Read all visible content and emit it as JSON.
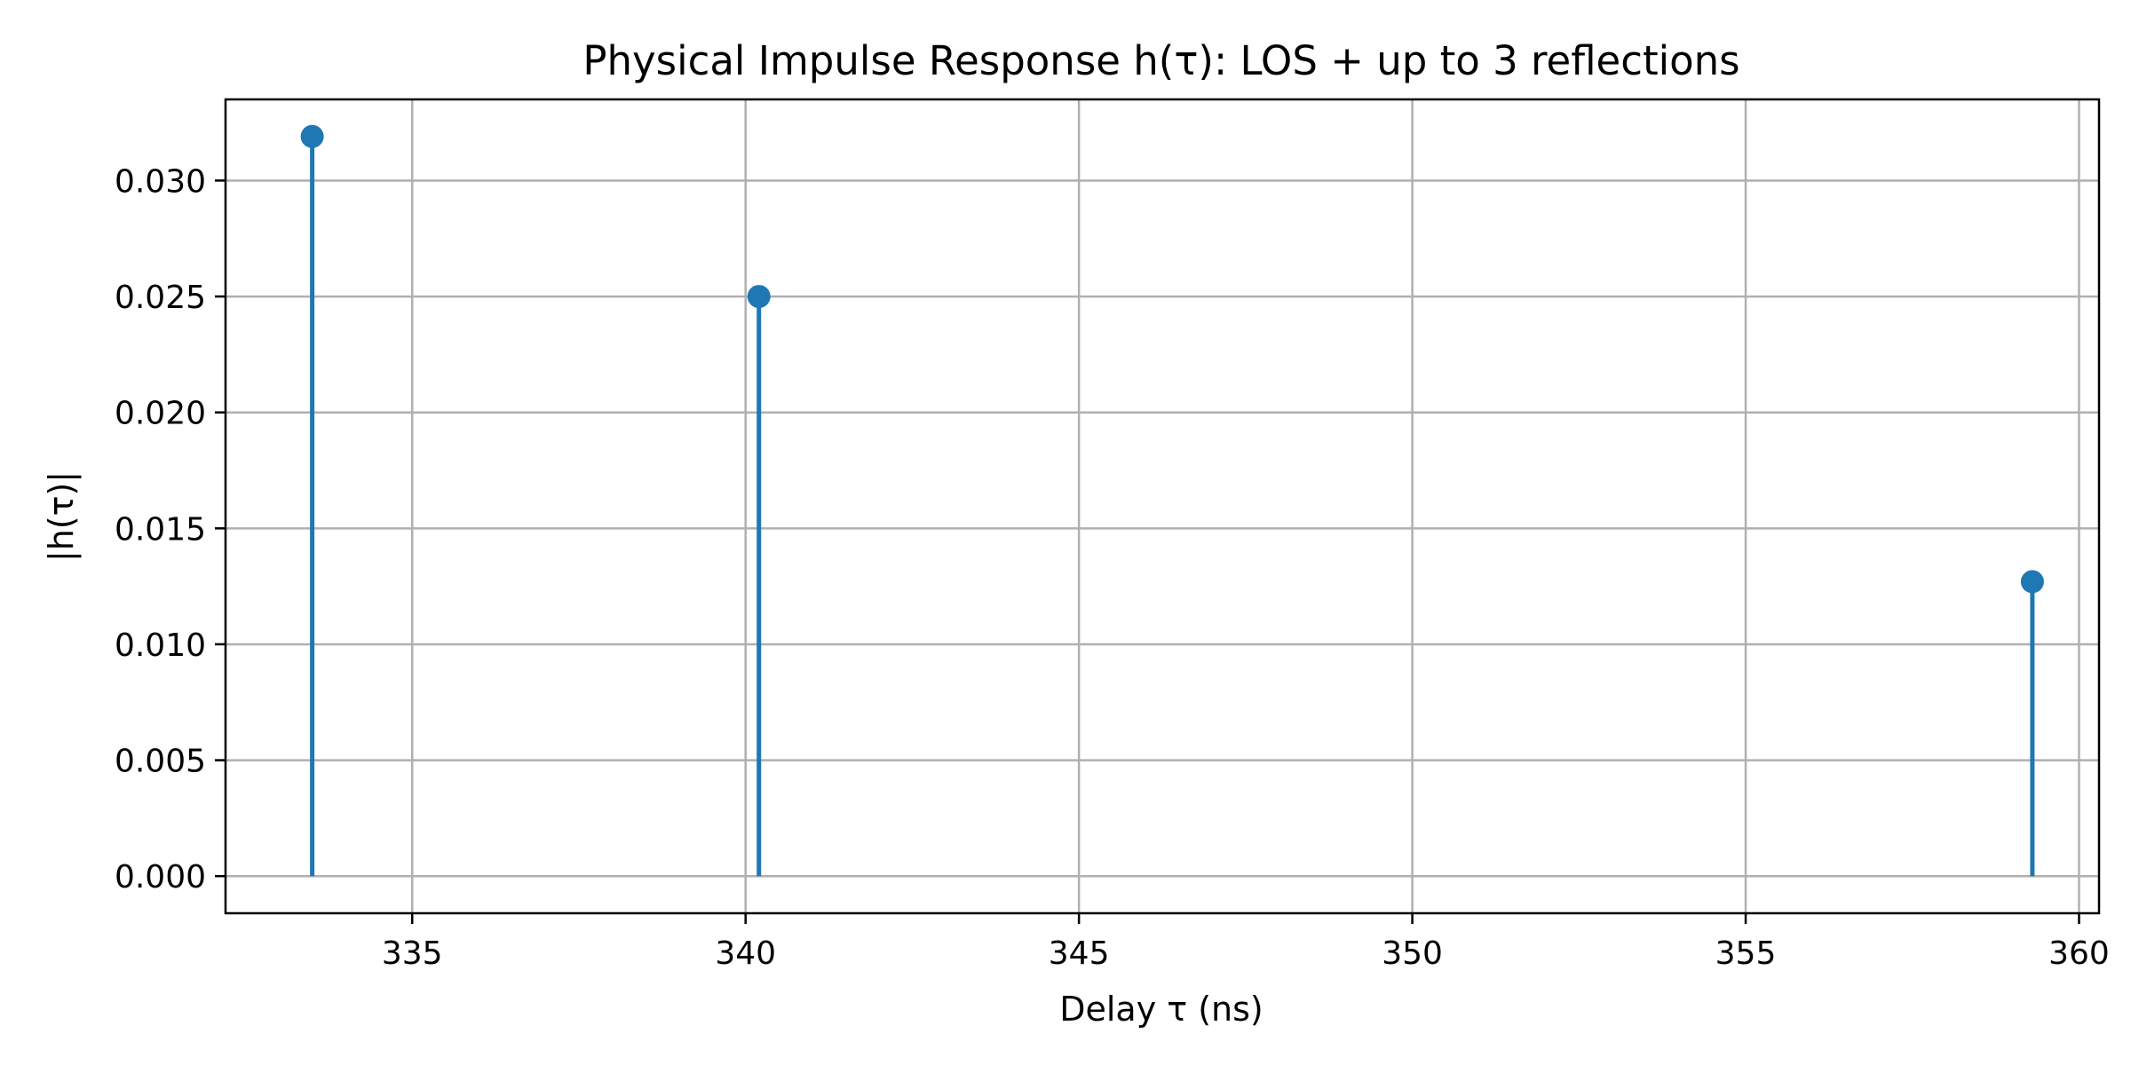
{
  "chart_data": {
    "type": "stem",
    "title": "Physical Impulse Response h(τ): LOS + up to 3 reflections",
    "xlabel": "Delay τ (ns)",
    "ylabel": "|h(τ)|",
    "xlim": [
      332.2,
      360.3
    ],
    "ylim": [
      -0.0016,
      0.0335
    ],
    "xticks": [
      335,
      340,
      345,
      350,
      355,
      360
    ],
    "xtick_labels": [
      "335",
      "340",
      "345",
      "350",
      "355",
      "360"
    ],
    "yticks": [
      0.0,
      0.005,
      0.01,
      0.015,
      0.02,
      0.025,
      0.03
    ],
    "ytick_labels": [
      "0.000",
      "0.005",
      "0.010",
      "0.015",
      "0.020",
      "0.025",
      "0.030"
    ],
    "grid": true,
    "series": [
      {
        "x": [
          333.5,
          340.2,
          359.3
        ],
        "y": [
          0.0319,
          0.025,
          0.0127
        ],
        "color": "#1f77b4"
      }
    ]
  }
}
